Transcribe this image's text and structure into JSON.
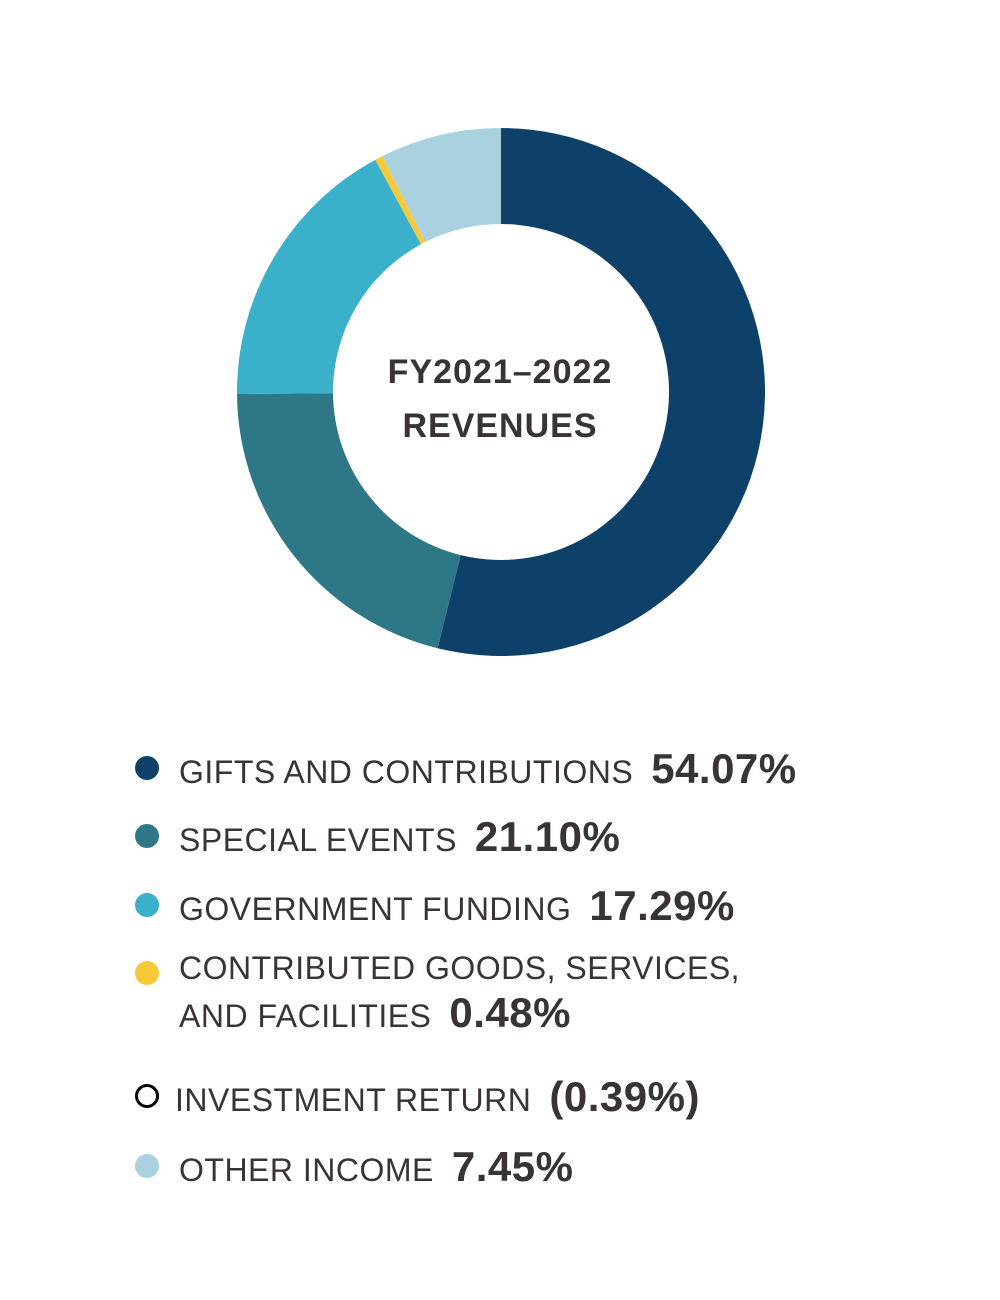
{
  "chart_data": {
    "type": "pie",
    "title": "FY2021–2022 REVENUES",
    "title_lines": [
      "FY2021–2022",
      "REVENUES"
    ],
    "categories": [
      "GIFTS AND CONTRIBUTIONS",
      "SPECIAL EVENTS",
      "GOVERNMENT FUNDING",
      "CONTRIBUTED GOODS, SERVICES, AND FACILITIES",
      "INVESTMENT RETURN",
      "OTHER INCOME"
    ],
    "values": [
      54.07,
      21.1,
      17.29,
      0.48,
      -0.39,
      7.45
    ],
    "value_labels": [
      "54.07%",
      "21.10%",
      "17.29%",
      "0.48%",
      "(0.39%)",
      "7.45%"
    ],
    "colors": [
      "#0d4169",
      "#2e7787",
      "#3ab0cb",
      "#f7c93a",
      "#000000",
      "#a9d1df"
    ],
    "legend_placement": "bottom",
    "legend": [
      {
        "label_lines": [
          "GIFTS AND CONTRIBUTIONS"
        ],
        "value": "54.07%",
        "color": "#0d4169",
        "hollow": false
      },
      {
        "label_lines": [
          "SPECIAL EVENTS"
        ],
        "value": "21.10%",
        "color": "#2e7787",
        "hollow": false
      },
      {
        "label_lines": [
          "GOVERNMENT FUNDING"
        ],
        "value": "17.29%",
        "color": "#3ab0cb",
        "hollow": false
      },
      {
        "label_lines": [
          "CONTRIBUTED GOODS, SERVICES,",
          "AND FACILITIES"
        ],
        "value": "0.48%",
        "color": "#f7c93a",
        "hollow": false
      },
      {
        "label_lines": [
          "INVESTMENT RETURN"
        ],
        "value": "(0.39%)",
        "color": "#000000",
        "hollow": true
      },
      {
        "label_lines": [
          "OTHER INCOME"
        ],
        "value": "7.45%",
        "color": "#a9d1df",
        "hollow": false
      }
    ]
  }
}
